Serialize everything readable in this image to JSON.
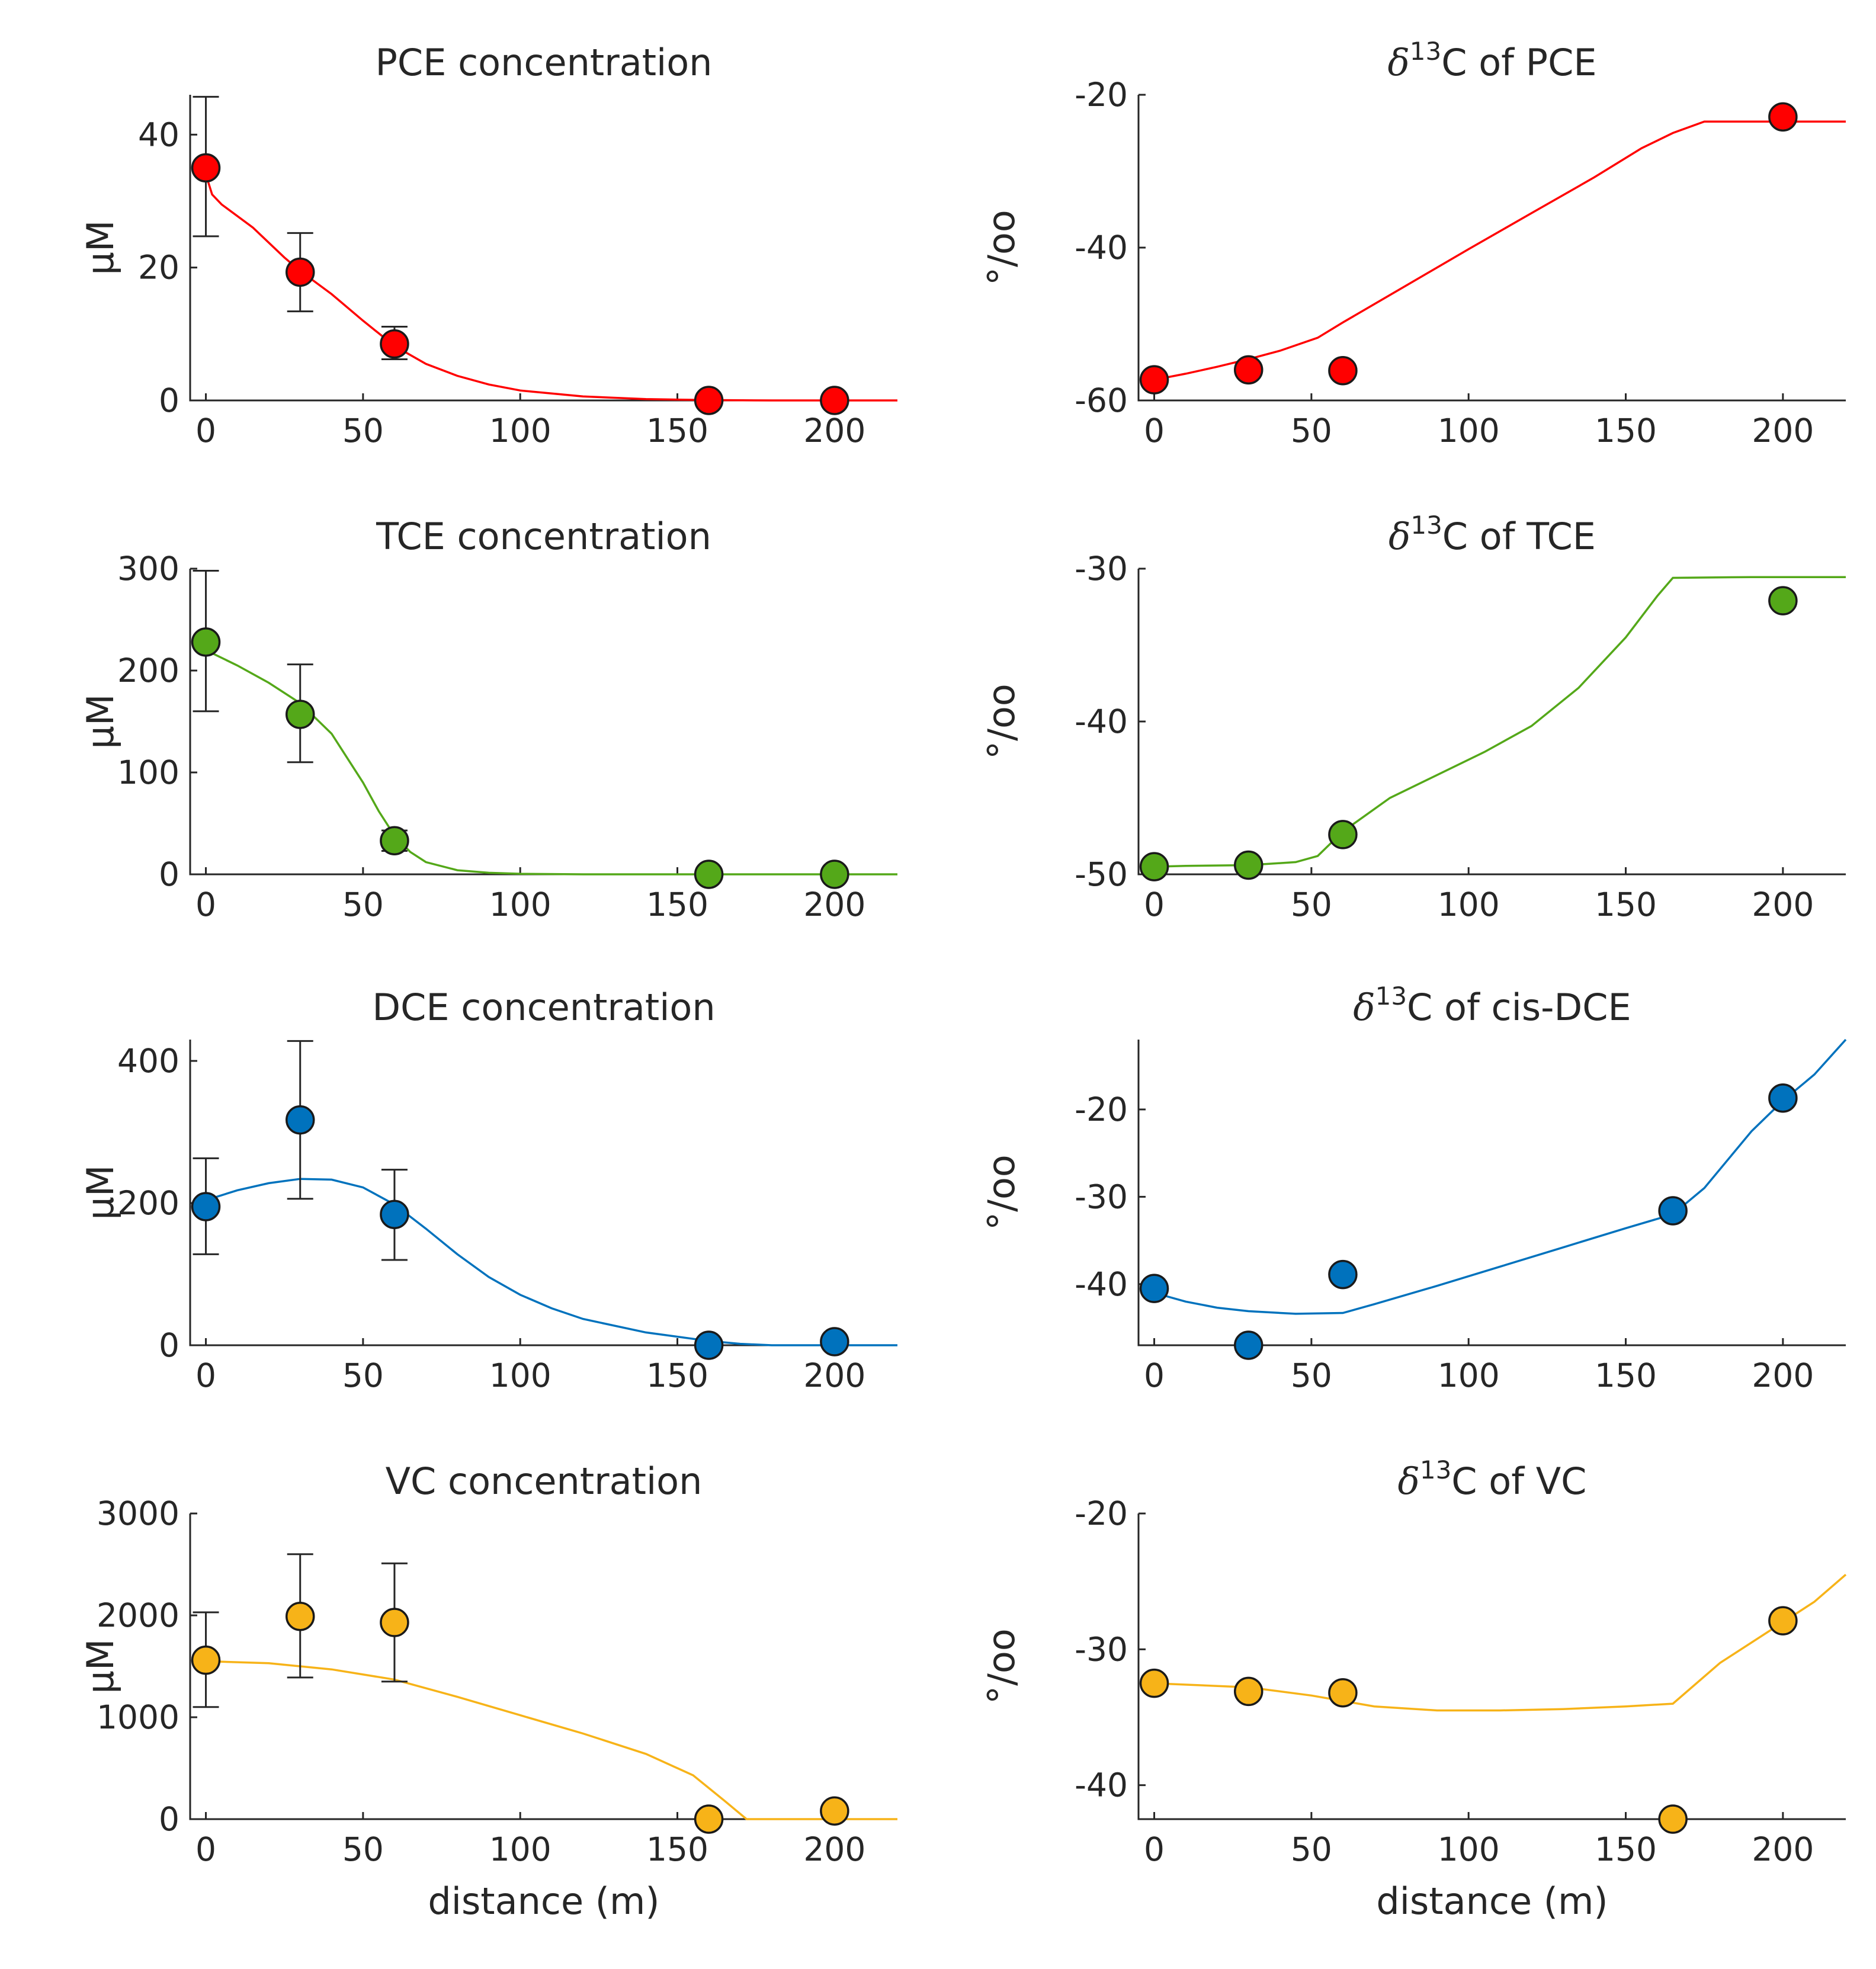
{
  "chart_data": [
    {
      "id": "pce-conc",
      "type": "scatter",
      "title": "PCE concentration",
      "title_sup": "",
      "ylabel": "µM",
      "xlabel": "",
      "color": "#ff0000",
      "xlim": [
        -5,
        220
      ],
      "ylim": [
        0,
        46
      ],
      "xticks": [
        0,
        50,
        100,
        150,
        200
      ],
      "yticks": [
        0,
        20,
        40
      ],
      "points": [
        {
          "x": 0,
          "y": 35,
          "lo": 24.7,
          "hi": 45.7
        },
        {
          "x": 30,
          "y": 19.3,
          "lo": 13.4,
          "hi": 25.2
        },
        {
          "x": 60,
          "y": 8.5,
          "lo": 6.2,
          "hi": 11.1
        },
        {
          "x": 160,
          "y": 0
        },
        {
          "x": 200,
          "y": 0
        }
      ],
      "fit": [
        [
          0,
          34
        ],
        [
          2,
          31
        ],
        [
          5,
          29.5
        ],
        [
          15,
          26
        ],
        [
          25,
          21.5
        ],
        [
          30,
          19.5
        ],
        [
          40,
          16
        ],
        [
          50,
          12
        ],
        [
          60,
          8.2
        ],
        [
          70,
          5.5
        ],
        [
          80,
          3.7
        ],
        [
          90,
          2.4
        ],
        [
          100,
          1.5
        ],
        [
          120,
          0.6
        ],
        [
          140,
          0.2
        ],
        [
          160,
          0.05
        ],
        [
          180,
          0
        ],
        [
          220,
          0
        ]
      ]
    },
    {
      "id": "pce-d13c",
      "type": "scatter",
      "title": "C of PCE",
      "title_sup": "13",
      "ylabel": "°/oo",
      "xlabel": "",
      "color": "#ff0000",
      "xlim": [
        -5,
        220
      ],
      "ylim": [
        -60,
        -20
      ],
      "xticks": [
        0,
        50,
        100,
        150,
        200
      ],
      "yticks": [
        -60,
        -40,
        -20
      ],
      "points": [
        {
          "x": 0,
          "y": -57.3
        },
        {
          "x": 30,
          "y": -56
        },
        {
          "x": 60,
          "y": -56.1
        },
        {
          "x": 200,
          "y": -22.9
        }
      ],
      "fit": [
        [
          0,
          -57.3
        ],
        [
          10,
          -56.5
        ],
        [
          20,
          -55.6
        ],
        [
          30,
          -54.6
        ],
        [
          40,
          -53.5
        ],
        [
          52,
          -51.8
        ],
        [
          60,
          -49.8
        ],
        [
          80,
          -45
        ],
        [
          100,
          -40.2
        ],
        [
          120,
          -35.5
        ],
        [
          140,
          -30.8
        ],
        [
          155,
          -27
        ],
        [
          165,
          -25
        ],
        [
          175,
          -23.5
        ],
        [
          200,
          -23.5
        ],
        [
          220,
          -23.5
        ]
      ]
    },
    {
      "id": "tce-conc",
      "type": "scatter",
      "title": "TCE concentration",
      "title_sup": "",
      "ylabel": "µM",
      "xlabel": "",
      "color": "#54a819",
      "xlim": [
        -5,
        220
      ],
      "ylim": [
        0,
        300
      ],
      "xticks": [
        0,
        50,
        100,
        150,
        200
      ],
      "yticks": [
        0,
        100,
        200,
        300
      ],
      "points": [
        {
          "x": 0,
          "y": 228,
          "lo": 160,
          "hi": 298
        },
        {
          "x": 30,
          "y": 157,
          "lo": 110,
          "hi": 206
        },
        {
          "x": 60,
          "y": 33,
          "lo": 23,
          "hi": 43
        },
        {
          "x": 160,
          "y": 0
        },
        {
          "x": 200,
          "y": 0
        }
      ],
      "fit": [
        [
          0,
          220
        ],
        [
          10,
          205
        ],
        [
          20,
          188
        ],
        [
          30,
          168
        ],
        [
          40,
          138
        ],
        [
          50,
          90
        ],
        [
          55,
          62
        ],
        [
          60,
          38
        ],
        [
          65,
          22
        ],
        [
          70,
          12
        ],
        [
          80,
          4
        ],
        [
          90,
          1.5
        ],
        [
          100,
          0.5
        ],
        [
          120,
          0
        ],
        [
          220,
          0
        ]
      ]
    },
    {
      "id": "tce-d13c",
      "type": "scatter",
      "title": "C of TCE",
      "title_sup": "13",
      "ylabel": "°/oo",
      "xlabel": "",
      "color": "#54a819",
      "xlim": [
        -5,
        220
      ],
      "ylim": [
        -50,
        -30
      ],
      "xticks": [
        0,
        50,
        100,
        150,
        200
      ],
      "yticks": [
        -50,
        -40,
        -30
      ],
      "points": [
        {
          "x": 0,
          "y": -49.5
        },
        {
          "x": 30,
          "y": -49.4
        },
        {
          "x": 60,
          "y": -47.4
        },
        {
          "x": 200,
          "y": -32.1
        }
      ],
      "fit": [
        [
          0,
          -49.5
        ],
        [
          10,
          -49.45
        ],
        [
          30,
          -49.4
        ],
        [
          45,
          -49.2
        ],
        [
          52,
          -48.8
        ],
        [
          60,
          -47.2
        ],
        [
          75,
          -45
        ],
        [
          90,
          -43.5
        ],
        [
          105,
          -42
        ],
        [
          120,
          -40.3
        ],
        [
          135,
          -37.8
        ],
        [
          150,
          -34.5
        ],
        [
          160,
          -31.8
        ],
        [
          165,
          -30.6
        ],
        [
          190,
          -30.55
        ],
        [
          220,
          -30.55
        ]
      ]
    },
    {
      "id": "dce-conc",
      "type": "scatter",
      "title": "DCE concentration",
      "title_sup": "",
      "ylabel": "µM",
      "xlabel": "",
      "color": "#0072bd",
      "xlim": [
        -5,
        220
      ],
      "ylim": [
        0,
        430
      ],
      "xticks": [
        0,
        50,
        100,
        150,
        200
      ],
      "yticks": [
        0,
        200,
        400
      ],
      "points": [
        {
          "x": 0,
          "y": 195,
          "lo": 128,
          "hi": 263
        },
        {
          "x": 30,
          "y": 317,
          "lo": 206,
          "hi": 428
        },
        {
          "x": 60,
          "y": 184,
          "lo": 120,
          "hi": 247
        },
        {
          "x": 160,
          "y": 0
        },
        {
          "x": 200,
          "y": 5
        }
      ],
      "fit": [
        [
          0,
          204
        ],
        [
          10,
          218
        ],
        [
          20,
          228
        ],
        [
          30,
          234
        ],
        [
          40,
          233
        ],
        [
          50,
          222
        ],
        [
          60,
          198
        ],
        [
          70,
          164
        ],
        [
          80,
          128
        ],
        [
          90,
          96
        ],
        [
          100,
          71
        ],
        [
          110,
          52
        ],
        [
          120,
          37
        ],
        [
          140,
          18
        ],
        [
          160,
          6
        ],
        [
          170,
          2
        ],
        [
          180,
          0
        ],
        [
          220,
          0
        ]
      ]
    },
    {
      "id": "dce-d13c",
      "type": "scatter",
      "title": "C of cis-DCE",
      "title_sup": "13",
      "ylabel": "°/oo",
      "xlabel": "",
      "color": "#0072bd",
      "xlim": [
        -5,
        220
      ],
      "ylim": [
        -47,
        -12
      ],
      "xticks": [
        0,
        50,
        100,
        150,
        200
      ],
      "yticks": [
        -40,
        -30,
        -20
      ],
      "points": [
        {
          "x": 0,
          "y": -40.5
        },
        {
          "x": 30,
          "y": -47
        },
        {
          "x": 60,
          "y": -38.9
        },
        {
          "x": 165,
          "y": -31.6
        },
        {
          "x": 200,
          "y": -18.7
        }
      ],
      "fit": [
        [
          0,
          -41
        ],
        [
          10,
          -42
        ],
        [
          20,
          -42.7
        ],
        [
          30,
          -43.1
        ],
        [
          45,
          -43.4
        ],
        [
          60,
          -43.3
        ],
        [
          70,
          -42.3
        ],
        [
          90,
          -40.2
        ],
        [
          110,
          -38
        ],
        [
          130,
          -35.8
        ],
        [
          150,
          -33.6
        ],
        [
          165,
          -32
        ],
        [
          175,
          -29
        ],
        [
          190,
          -22.5
        ],
        [
          200,
          -19
        ],
        [
          210,
          -16
        ],
        [
          220,
          -12
        ]
      ]
    },
    {
      "id": "vc-conc",
      "type": "scatter",
      "title": "VC concentration",
      "title_sup": "",
      "ylabel": "µM",
      "xlabel": "distance (m)",
      "color": "#f7b318",
      "xlim": [
        -5,
        220
      ],
      "ylim": [
        0,
        3000
      ],
      "xticks": [
        0,
        50,
        100,
        150,
        200
      ],
      "yticks": [
        0,
        1000,
        2000,
        3000
      ],
      "points": [
        {
          "x": 0,
          "y": 1560,
          "lo": 1100,
          "hi": 2030
        },
        {
          "x": 30,
          "y": 1990,
          "lo": 1390,
          "hi": 2600
        },
        {
          "x": 60,
          "y": 1930,
          "lo": 1350,
          "hi": 2510
        },
        {
          "x": 160,
          "y": 0
        },
        {
          "x": 200,
          "y": 80
        }
      ],
      "fit": [
        [
          0,
          1550
        ],
        [
          20,
          1530
        ],
        [
          40,
          1470
        ],
        [
          60,
          1370
        ],
        [
          80,
          1200
        ],
        [
          100,
          1020
        ],
        [
          120,
          840
        ],
        [
          140,
          640
        ],
        [
          155,
          430
        ],
        [
          165,
          180
        ],
        [
          172,
          0
        ],
        [
          220,
          0
        ]
      ]
    },
    {
      "id": "vc-d13c",
      "type": "scatter",
      "title": "C of VC",
      "title_sup": "13",
      "ylabel": "°/oo",
      "xlabel": "distance (m)",
      "color": "#f7b318",
      "xlim": [
        -5,
        220
      ],
      "ylim": [
        -42.5,
        -20
      ],
      "xticks": [
        0,
        50,
        100,
        150,
        200
      ],
      "yticks": [
        -40,
        -30,
        -20
      ],
      "points": [
        {
          "x": 0,
          "y": -32.5
        },
        {
          "x": 30,
          "y": -33.1
        },
        {
          "x": 60,
          "y": -33.2
        },
        {
          "x": 165,
          "y": -42.5
        },
        {
          "x": 200,
          "y": -27.9
        }
      ],
      "fit": [
        [
          0,
          -32.5
        ],
        [
          30,
          -32.8
        ],
        [
          50,
          -33.4
        ],
        [
          70,
          -34.2
        ],
        [
          90,
          -34.5
        ],
        [
          110,
          -34.5
        ],
        [
          130,
          -34.4
        ],
        [
          150,
          -34.2
        ],
        [
          165,
          -34
        ],
        [
          180,
          -31
        ],
        [
          200,
          -28
        ],
        [
          210,
          -26.5
        ],
        [
          220,
          -24.5
        ]
      ]
    }
  ]
}
